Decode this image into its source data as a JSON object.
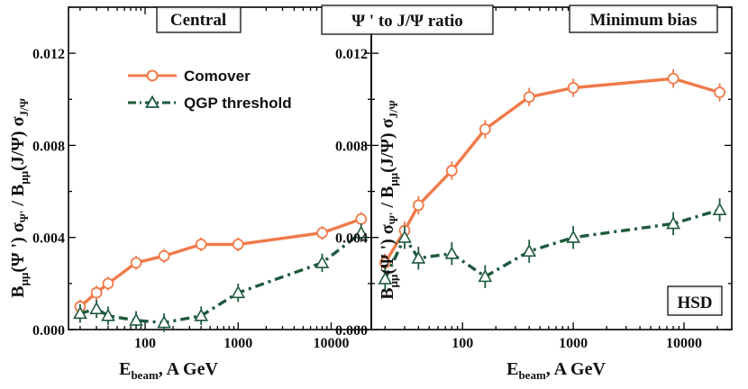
{
  "figure": {
    "suptitle": "Ψ ' to J/Ψ ratio",
    "label_hsd": "HSD",
    "colors": {
      "comover": "#f07a4a",
      "qgp": "#1e5a3c",
      "frame": "#000000"
    }
  },
  "legend": {
    "items": [
      {
        "label": "Comover",
        "marker": "circle",
        "style": "solid",
        "color": "#f07a4a"
      },
      {
        "label": "QGP threshold",
        "marker": "triangle",
        "style": "dashdot",
        "color": "#1e5a3c"
      }
    ]
  },
  "axis_labels": {
    "xlabel_main": "E",
    "xlabel_sub": "beam",
    "xlabel_rest": ",  A GeV",
    "ylabel_parts": [
      {
        "t": "B",
        "sub": "μμ"
      },
      {
        "t": "(Ψ ') σ",
        "sub": "Ψ'"
      },
      {
        "t": " / B",
        "sub": "μμ"
      },
      {
        "t": "(J/Ψ) σ",
        "sub": "J/Ψ"
      }
    ]
  },
  "chart_data": [
    {
      "type": "line",
      "title": "Central",
      "xscale": "log",
      "xlim": [
        15,
        27000
      ],
      "ylim": [
        0.0,
        0.014
      ],
      "xticks": [
        100,
        1000,
        10000
      ],
      "xtick_labels": [
        "100",
        "1000",
        "10000"
      ],
      "yticks": [
        0.0,
        0.004,
        0.008,
        0.012
      ],
      "ytick_labels": [
        "0.000",
        "0.004",
        "0.008",
        "0.012"
      ],
      "series": [
        {
          "name": "Comover",
          "x": [
            20,
            30,
            40,
            80,
            160,
            400,
            1000,
            8000,
            21000
          ],
          "y": [
            0.001,
            0.0016,
            0.002,
            0.0029,
            0.0032,
            0.0037,
            0.0037,
            0.0042,
            0.0048
          ],
          "yerr": 0.0003
        },
        {
          "name": "QGP threshold",
          "x": [
            20,
            30,
            40,
            80,
            160,
            400,
            1000,
            8000,
            21000
          ],
          "y": [
            0.0007,
            0.0009,
            0.0006,
            0.0004,
            0.0003,
            0.0006,
            0.0016,
            0.0029,
            0.0042
          ],
          "yerr": 0.0004
        }
      ]
    },
    {
      "type": "line",
      "title": "Minimum bias",
      "xscale": "log",
      "xlim": [
        15,
        27000
      ],
      "ylim": [
        0.0,
        0.014
      ],
      "xticks": [
        100,
        1000,
        10000
      ],
      "xtick_labels": [
        "100",
        "1000",
        "10000"
      ],
      "yticks": [
        0.0,
        0.004,
        0.008,
        0.012
      ],
      "ytick_labels": [
        "0.000",
        "0.004",
        "0.008",
        "0.012"
      ],
      "series": [
        {
          "name": "Comover",
          "x": [
            20,
            30,
            40,
            80,
            160,
            400,
            1000,
            8000,
            21000
          ],
          "y": [
            0.0029,
            0.0043,
            0.0054,
            0.0069,
            0.0087,
            0.0101,
            0.0105,
            0.0109,
            0.0103
          ],
          "yerr": 0.0004
        },
        {
          "name": "QGP threshold",
          "x": [
            20,
            30,
            40,
            80,
            160,
            400,
            1000,
            8000,
            21000
          ],
          "y": [
            0.0022,
            0.004,
            0.0031,
            0.0033,
            0.0023,
            0.0034,
            0.004,
            0.0046,
            0.0052
          ],
          "yerr": 0.0005
        }
      ]
    }
  ]
}
